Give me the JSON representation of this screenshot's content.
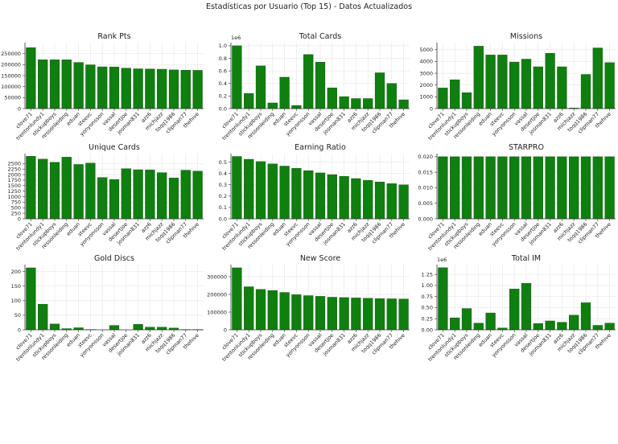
{
  "figure_title": "Estadísticas por Usuario (Top 15) - Datos Actualizados",
  "bar_color": "#0f7f0f",
  "chart_data": [
    {
      "type": "bar",
      "title": "Rank Pts",
      "categories": [
        "clove71",
        "trentonlundy1",
        "stickupboys",
        "ressonleiding",
        "eduan",
        "steevc",
        "yonyonsson",
        "vassal",
        "desertjoe",
        "josman831",
        "azz6",
        "michjazz",
        "toqq1986",
        "clipman77",
        "thehive"
      ],
      "values": [
        277000,
        222000,
        222000,
        222000,
        210000,
        199000,
        190000,
        189000,
        184000,
        181000,
        180000,
        179000,
        176000,
        175000,
        174000
      ],
      "ylim": [
        0,
        300000
      ],
      "yticks": [
        0,
        50000,
        100000,
        150000,
        200000,
        250000
      ],
      "ytick_labels": [
        "0",
        "50000",
        "100000",
        "150000",
        "200000",
        "250000"
      ],
      "offset": ""
    },
    {
      "type": "bar",
      "title": "Total Cards",
      "categories": [
        "clove71",
        "trentonlundy1",
        "stickupboys",
        "ressonleiding",
        "eduan",
        "steevc",
        "yonyonsson",
        "vassal",
        "desertjoe",
        "josman831",
        "azz6",
        "michjazz",
        "toqq1986",
        "clipman77",
        "thehive"
      ],
      "values": [
        1000000,
        240000,
        680000,
        90000,
        500000,
        50000,
        860000,
        740000,
        330000,
        190000,
        160000,
        160000,
        570000,
        400000,
        140000
      ],
      "ylim": [
        0,
        1050000
      ],
      "yticks": [
        0,
        200000,
        400000,
        600000,
        800000,
        1000000
      ],
      "ytick_labels": [
        "0.0",
        "0.2",
        "0.4",
        "0.6",
        "0.8",
        "1.0"
      ],
      "offset": "1e6"
    },
    {
      "type": "bar",
      "title": "Missions",
      "categories": [
        "clove71",
        "trentonlundy1",
        "stickupboys",
        "ressonleiding",
        "eduan",
        "steevc",
        "yonyonsson",
        "vassal",
        "desertjoe",
        "josman831",
        "azz6",
        "michjazz",
        "toqq1986",
        "clipman77",
        "thehive"
      ],
      "values": [
        1750,
        2450,
        1350,
        5300,
        4550,
        4550,
        3950,
        4200,
        3550,
        4700,
        3550,
        50,
        2900,
        5150,
        3900
      ],
      "ylim": [
        0,
        5600
      ],
      "yticks": [
        0,
        1000,
        2000,
        3000,
        4000,
        5000
      ],
      "ytick_labels": [
        "0",
        "1000",
        "2000",
        "3000",
        "4000",
        "5000"
      ],
      "offset": ""
    },
    {
      "type": "bar",
      "title": "Unique Cards",
      "categories": [
        "clove71",
        "trentonlundy1",
        "stickupboys",
        "ressonleiding",
        "eduan",
        "steevc",
        "yonyonsson",
        "vassal",
        "desertjoe",
        "josman831",
        "azz6",
        "michjazz",
        "toqq1986",
        "clipman77",
        "thehive"
      ],
      "values": [
        2830,
        2700,
        2560,
        2790,
        2460,
        2520,
        1870,
        1780,
        2270,
        2220,
        2210,
        2090,
        1850,
        2200,
        2160
      ],
      "ylim": [
        0,
        2950
      ],
      "yticks": [
        0,
        250,
        500,
        750,
        1000,
        1250,
        1500,
        1750,
        2000,
        2250,
        2500
      ],
      "ytick_labels": [
        "0",
        "250",
        "500",
        "750",
        "1000",
        "1250",
        "1500",
        "1750",
        "2000",
        "2250",
        "2500"
      ],
      "offset": ""
    },
    {
      "type": "bar",
      "title": "Earning Ratio",
      "categories": [
        "clove71",
        "trentonlundy1",
        "stickupboys",
        "ressonleiding",
        "eduan",
        "steevc",
        "yonyonsson",
        "vassal",
        "desertjoe",
        "josman831",
        "azz6",
        "michjazz",
        "toqq1986",
        "clipman77",
        "thehive"
      ],
      "values": [
        0.55,
        0.525,
        0.505,
        0.485,
        0.465,
        0.445,
        0.425,
        0.405,
        0.39,
        0.375,
        0.355,
        0.34,
        0.325,
        0.31,
        0.3
      ],
      "ylim": [
        0,
        0.575
      ],
      "yticks": [
        0,
        0.1,
        0.2,
        0.3,
        0.4,
        0.5
      ],
      "ytick_labels": [
        "0.0",
        "0.1",
        "0.2",
        "0.3",
        "0.4",
        "0.5"
      ],
      "offset": ""
    },
    {
      "type": "bar",
      "title": "STARPRO",
      "categories": [
        "clove71",
        "trentonlundy1",
        "stickupboys",
        "ressonleiding",
        "eduan",
        "steevc",
        "yonyonsson",
        "vassal",
        "desertjoe",
        "josman831",
        "azz6",
        "michjazz",
        "toqq1986",
        "clipman77",
        "thehive"
      ],
      "values": [
        0.02,
        0.02,
        0.02,
        0.02,
        0.02,
        0.02,
        0.02,
        0.02,
        0.02,
        0.02,
        0.02,
        0.02,
        0.02,
        0.02,
        0.02
      ],
      "ylim": [
        0,
        0.021
      ],
      "yticks": [
        0,
        0.005,
        0.01,
        0.015,
        0.02
      ],
      "ytick_labels": [
        "0.000",
        "0.005",
        "0.010",
        "0.015",
        "0.020"
      ],
      "offset": ""
    },
    {
      "type": "bar",
      "title": "Gold Discs",
      "categories": [
        "clove71",
        "trentonlundy1",
        "stickupboys",
        "ressonleiding",
        "eduan",
        "steevc",
        "yonyonsson",
        "vassal",
        "desertjoe",
        "josman831",
        "azz6",
        "michjazz",
        "toqq1986",
        "clipman77",
        "thehive"
      ],
      "values": [
        213,
        88,
        20,
        4,
        7,
        1,
        0,
        15,
        0,
        19,
        9,
        9,
        6,
        1,
        1
      ],
      "ylim": [
        0,
        224
      ],
      "yticks": [
        0,
        50,
        100,
        150,
        200
      ],
      "ytick_labels": [
        "0",
        "50",
        "100",
        "150",
        "200"
      ],
      "offset": ""
    },
    {
      "type": "bar",
      "title": "New Score",
      "categories": [
        "clove71",
        "trentonlundy1",
        "stickupboys",
        "ressonleiding",
        "eduan",
        "steevc",
        "yonyonsson",
        "vassal",
        "desertjoe",
        "josman831",
        "azz6",
        "michjazz",
        "toqq1986",
        "clipman77",
        "thehive"
      ],
      "values": [
        350000,
        243000,
        228000,
        222000,
        211000,
        198000,
        193000,
        189000,
        184000,
        182000,
        180000,
        178000,
        176000,
        175000,
        174000
      ],
      "ylim": [
        0,
        368000
      ],
      "yticks": [
        0,
        100000,
        200000,
        300000
      ],
      "ytick_labels": [
        "0",
        "100000",
        "200000",
        "300000"
      ],
      "offset": ""
    },
    {
      "type": "bar",
      "title": "Total IM",
      "categories": [
        "clove71",
        "trentonlundy1",
        "stickupboys",
        "ressonleiding",
        "eduan",
        "steevc",
        "yonyonsson",
        "vassal",
        "desertjoe",
        "josman831",
        "azz6",
        "michjazz",
        "toqq1986",
        "clipman77",
        "thehive"
      ],
      "values": [
        1400000,
        270000,
        480000,
        150000,
        380000,
        40000,
        920000,
        1050000,
        140000,
        200000,
        170000,
        330000,
        610000,
        100000,
        150000
      ],
      "ylim": [
        0,
        1470000
      ],
      "yticks": [
        0,
        250000,
        500000,
        750000,
        1000000,
        1250000
      ],
      "ytick_labels": [
        "0.00",
        "0.25",
        "0.50",
        "0.75",
        "1.00",
        "1.25"
      ],
      "offset": "1e6"
    }
  ]
}
